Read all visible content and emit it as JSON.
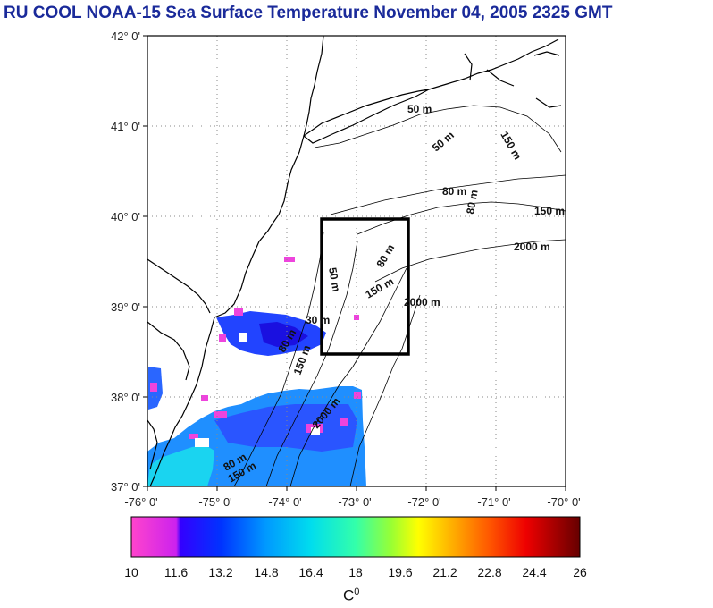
{
  "title": "RU COOL  NOAA-15 Sea Surface Temperature November 04, 2005 2325 GMT",
  "map": {
    "lon_labels": [
      "-76° 0'",
      "-75° 0'",
      "-74° 0'",
      "-73° 0'",
      "-72° 0'",
      "-71° 0'",
      "-70° 0'"
    ],
    "lat_labels": [
      "42° 0'",
      "41° 0'",
      "40° 0'",
      "39° 0'",
      "38° 0'",
      "37° 0'"
    ],
    "lon_range": [
      -76,
      -70
    ],
    "lat_range": [
      37,
      42
    ],
    "study_box": {
      "lon": [
        -73.45,
        -72.45
      ],
      "lat": [
        38.5,
        40.0
      ]
    },
    "contour_labels": [
      "50 m",
      "50 m",
      "80 m",
      "150 m",
      "2000 m",
      "80 m",
      "50 m",
      "150 m",
      "2000 m",
      "30 m",
      "80 m",
      "150 m",
      "2000 m",
      "80 m",
      "150 m",
      "80 m",
      "150 m"
    ],
    "colors": {
      "land_outline": "#000000",
      "grid": "#888888",
      "frame": "#000000"
    }
  },
  "colorbar": {
    "ticks": [
      "10",
      "11.6",
      "13.2",
      "14.8",
      "16.4",
      "18",
      "19.6",
      "21.2",
      "22.8",
      "24.4",
      "26"
    ],
    "unit": "C",
    "unit_sup": "0",
    "range": [
      10,
      26
    ]
  }
}
